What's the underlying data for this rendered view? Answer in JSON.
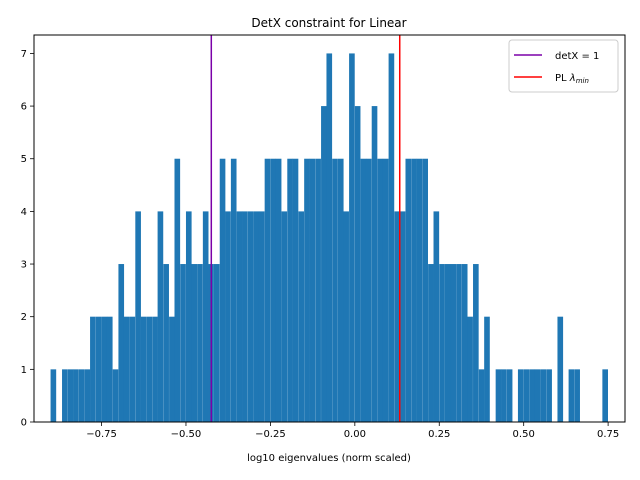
{
  "chart_data": {
    "type": "bar",
    "title": "DetX constraint for Linear",
    "xlabel": "log10 eigenvalues (norm scaled)",
    "ylabel": "",
    "xlim": [
      -0.95,
      0.8
    ],
    "ylim": [
      0,
      7.35
    ],
    "grid": false,
    "legend_position": "top-right",
    "bar_color": "#1f77b4",
    "bin_width": 0.01667,
    "xticks": [
      -0.75,
      -0.5,
      -0.25,
      0.0,
      0.25,
      0.5,
      0.75
    ],
    "xtick_labels": [
      "−0.75",
      "−0.50",
      "−0.25",
      "0.00",
      "0.25",
      "0.50",
      "0.75"
    ],
    "yticks": [
      0,
      1,
      2,
      3,
      4,
      5,
      6,
      7
    ],
    "ytick_labels": [
      "0",
      "1",
      "2",
      "3",
      "4",
      "5",
      "6",
      "7"
    ],
    "bins": [
      [
        -0.901,
        1
      ],
      [
        -0.867,
        1
      ],
      [
        -0.85,
        1
      ],
      [
        -0.834,
        1
      ],
      [
        -0.817,
        1
      ],
      [
        -0.8,
        1
      ],
      [
        -0.784,
        2
      ],
      [
        -0.767,
        2
      ],
      [
        -0.75,
        2
      ],
      [
        -0.734,
        2
      ],
      [
        -0.717,
        1
      ],
      [
        -0.7,
        3
      ],
      [
        -0.684,
        2
      ],
      [
        -0.667,
        2
      ],
      [
        -0.65,
        4
      ],
      [
        -0.634,
        2
      ],
      [
        -0.617,
        2
      ],
      [
        -0.6,
        2
      ],
      [
        -0.584,
        4
      ],
      [
        -0.567,
        3
      ],
      [
        -0.55,
        2
      ],
      [
        -0.534,
        5
      ],
      [
        -0.517,
        3
      ],
      [
        -0.5,
        4
      ],
      [
        -0.484,
        3
      ],
      [
        -0.467,
        3
      ],
      [
        -0.45,
        4
      ],
      [
        -0.434,
        3
      ],
      [
        -0.417,
        3
      ],
      [
        -0.4,
        5
      ],
      [
        -0.384,
        4
      ],
      [
        -0.367,
        5
      ],
      [
        -0.35,
        4
      ],
      [
        -0.334,
        4
      ],
      [
        -0.317,
        4
      ],
      [
        -0.3,
        4
      ],
      [
        -0.284,
        4
      ],
      [
        -0.267,
        5
      ],
      [
        -0.25,
        5
      ],
      [
        -0.234,
        5
      ],
      [
        -0.217,
        4
      ],
      [
        -0.2,
        5
      ],
      [
        -0.184,
        5
      ],
      [
        -0.167,
        4
      ],
      [
        -0.15,
        5
      ],
      [
        -0.134,
        5
      ],
      [
        -0.117,
        5
      ],
      [
        -0.1,
        6
      ],
      [
        -0.084,
        7
      ],
      [
        -0.067,
        5
      ],
      [
        -0.05,
        5
      ],
      [
        -0.034,
        4
      ],
      [
        -0.017,
        7
      ],
      [
        0.0,
        6
      ],
      [
        0.017,
        5
      ],
      [
        0.033,
        5
      ],
      [
        0.05,
        6
      ],
      [
        0.067,
        5
      ],
      [
        0.083,
        5
      ],
      [
        0.1,
        7
      ],
      [
        0.117,
        4
      ],
      [
        0.133,
        4
      ],
      [
        0.15,
        5
      ],
      [
        0.167,
        5
      ],
      [
        0.183,
        5
      ],
      [
        0.2,
        5
      ],
      [
        0.217,
        3
      ],
      [
        0.233,
        4
      ],
      [
        0.25,
        3
      ],
      [
        0.267,
        3
      ],
      [
        0.283,
        3
      ],
      [
        0.3,
        3
      ],
      [
        0.317,
        3
      ],
      [
        0.333,
        2
      ],
      [
        0.35,
        3
      ],
      [
        0.367,
        1
      ],
      [
        0.383,
        2
      ],
      [
        0.417,
        1
      ],
      [
        0.433,
        1
      ],
      [
        0.45,
        1
      ],
      [
        0.483,
        1
      ],
      [
        0.5,
        1
      ],
      [
        0.517,
        1
      ],
      [
        0.533,
        1
      ],
      [
        0.55,
        1
      ],
      [
        0.567,
        1
      ],
      [
        0.6,
        2
      ],
      [
        0.633,
        1
      ],
      [
        0.65,
        1
      ],
      [
        0.733,
        1
      ]
    ],
    "vlines": [
      {
        "label": "detX = 1",
        "label_main": "detX",
        "label_op": " = ",
        "label_value": "1",
        "x": -0.425,
        "color": "#7b00a8"
      },
      {
        "label": "PL λmin",
        "label_main": "PL ",
        "label_symbol": "λ",
        "label_sub": "min",
        "x": 0.133,
        "color": "#ff0000"
      }
    ]
  }
}
